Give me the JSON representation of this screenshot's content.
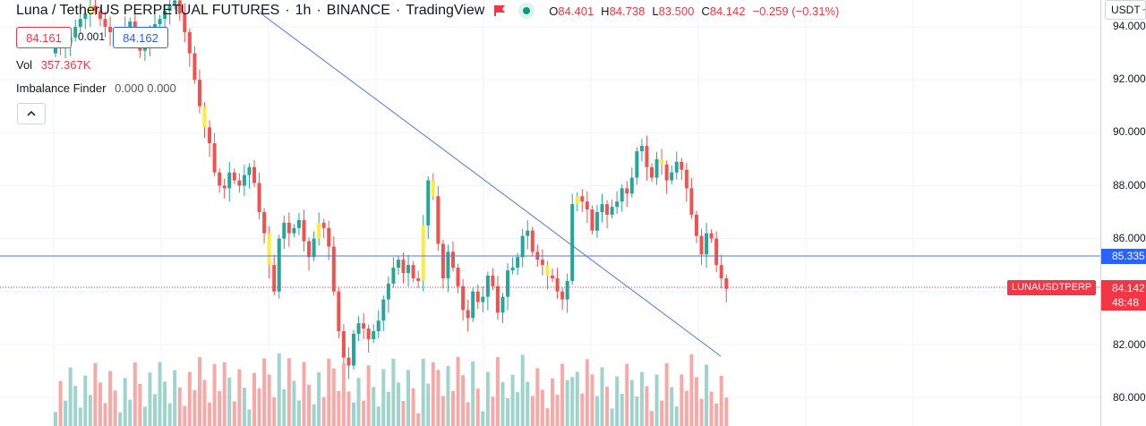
{
  "header": {
    "symbol": "Luna / TetherUS PERPETUAL FUTURES",
    "interval": "1h",
    "exchange": "BINANCE",
    "source": "TradingView",
    "ohlc": {
      "open_label": "O",
      "open": "84.401",
      "high_label": "H",
      "high": "84.738",
      "low_label": "L",
      "low": "83.500",
      "close_label": "C",
      "close": "84.142",
      "change": "−0.259 (−0.31%)"
    }
  },
  "trade": {
    "sell_price": "84.161",
    "spread": "0.001",
    "buy_price": "84.162"
  },
  "indicators": {
    "volume_label": "Vol",
    "volume_value": "357.367K",
    "imbalance_label": "Imbalance Finder",
    "imbalance_values": "0.000 0.000"
  },
  "price_axis": {
    "currency": "USDT",
    "ticks": [
      "94.000",
      "92.000",
      "90.000",
      "88.000",
      "86.000",
      "82.000",
      "80.000"
    ],
    "horizontal_line_price": "85.335",
    "last_price": "84.142",
    "countdown": "48:48",
    "symbol_tag": "LUNAUSDTPERP"
  },
  "colors": {
    "up": "#26a69a",
    "down": "#ef5350",
    "highlight": "#ffeb3b",
    "line": "#4a7ae0",
    "vol_up": "#9fd4cd",
    "vol_down": "#f7a9a7"
  },
  "icons": {
    "flag": "flag-icon",
    "live": "live-status-icon",
    "collapse": "chevron-up-icon",
    "currency": "chevron-down-icon"
  }
}
